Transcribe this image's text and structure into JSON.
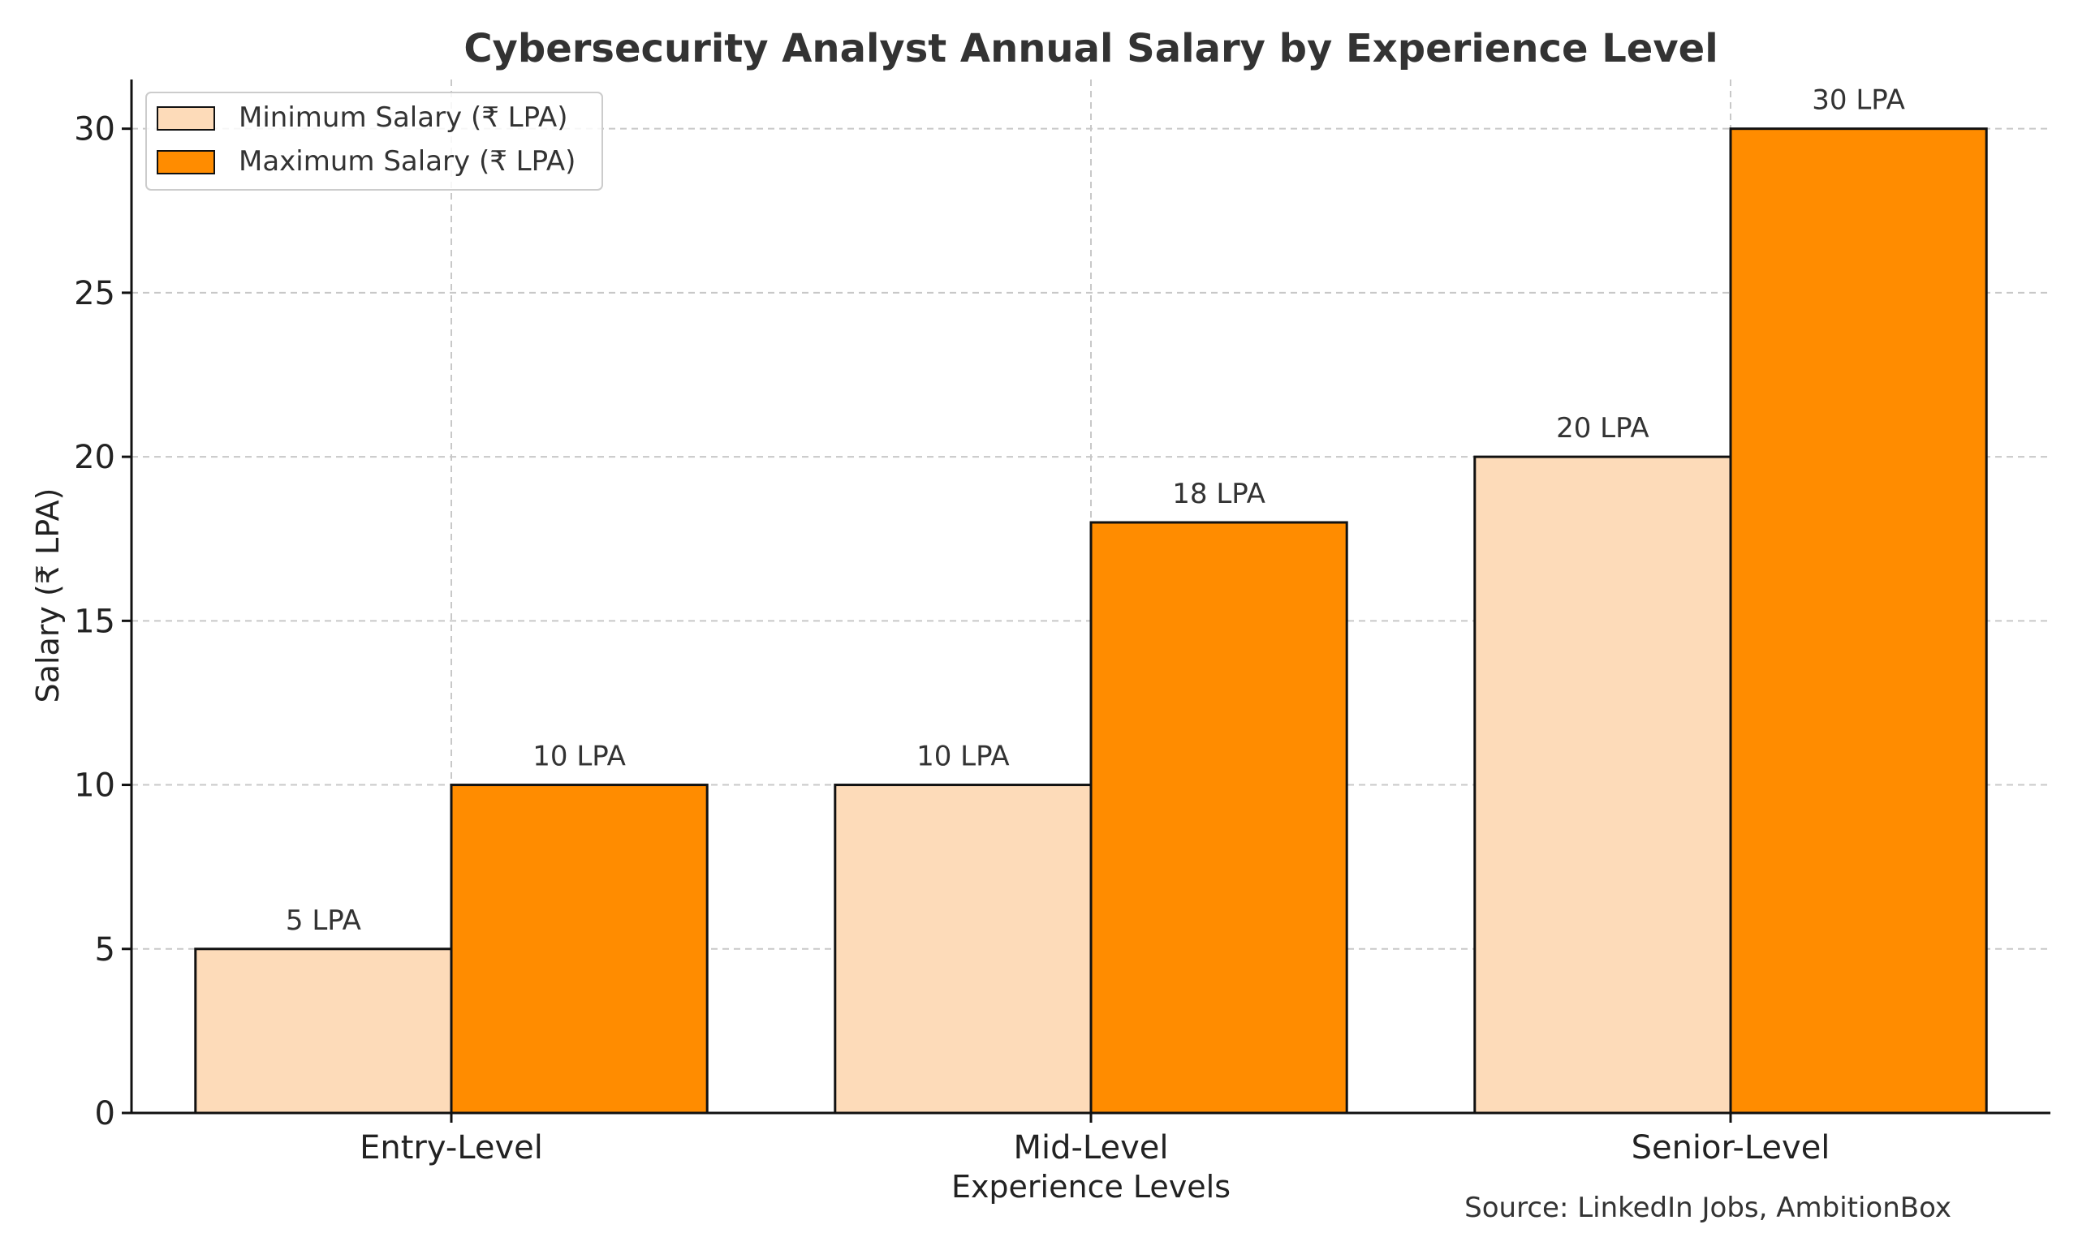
{
  "chart_data": {
    "type": "bar",
    "title": "Cybersecurity Analyst Annual Salary by Experience Level",
    "xlabel": "Experience Levels",
    "ylabel": "Salary (₹ LPA)",
    "categories": [
      "Entry-Level",
      "Mid-Level",
      "Senior-Level"
    ],
    "series": [
      {
        "name": "Minimum Salary (₹ LPA)",
        "values": [
          5,
          10,
          20
        ],
        "labels": [
          "5 LPA",
          "10 LPA",
          "20 LPA"
        ],
        "color": "#FDDBB9"
      },
      {
        "name": "Maximum Salary (₹ LPA)",
        "values": [
          10,
          18,
          30
        ],
        "labels": [
          "10 LPA",
          "18 LPA",
          "30 LPA"
        ],
        "color": "#FF8C00"
      }
    ],
    "ylim": [
      0,
      31.5
    ],
    "yticks": [
      0,
      5,
      10,
      15,
      20,
      25,
      30
    ],
    "grid": true,
    "legend_position": "top-left",
    "source_note": "Source: LinkedIn Jobs, AmbitionBox"
  }
}
